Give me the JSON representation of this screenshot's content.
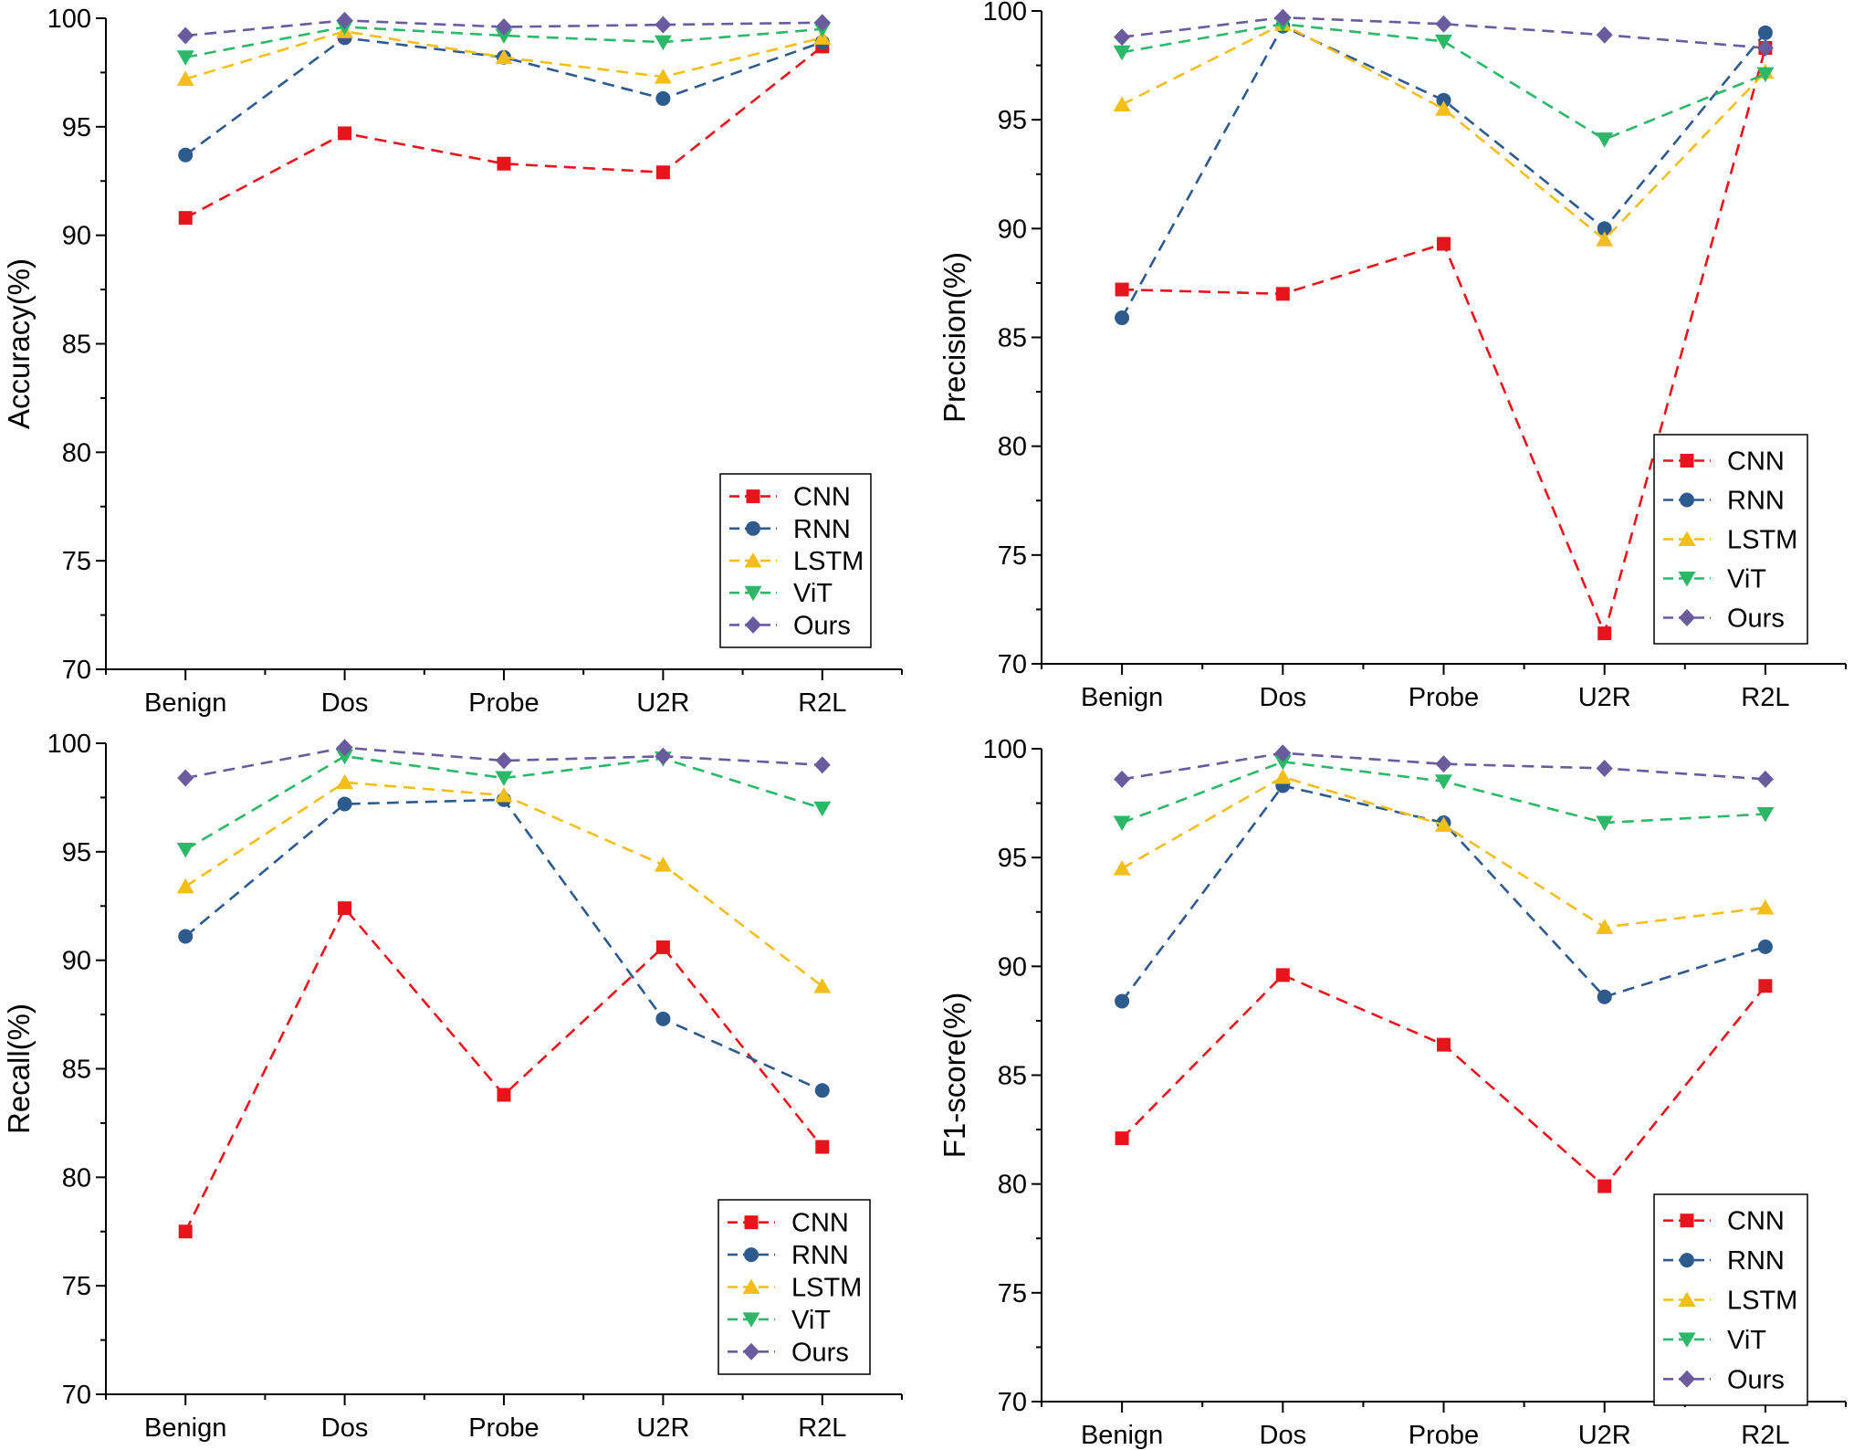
{
  "chart_data": [
    {
      "type": "line",
      "ylabel": "Accuracy(%)",
      "xlabel": "",
      "categories": [
        "Benign",
        "Dos",
        "Probe",
        "U2R",
        "R2L"
      ],
      "ylim": [
        70,
        100
      ],
      "yticks": [
        70,
        75,
        80,
        85,
        90,
        95,
        100
      ],
      "legend_position": "bottom-right",
      "series": [
        {
          "name": "CNN",
          "values": [
            90.8,
            94.7,
            93.3,
            92.9,
            98.7
          ]
        },
        {
          "name": "RNN",
          "values": [
            93.7,
            99.1,
            98.2,
            96.3,
            98.9
          ]
        },
        {
          "name": "LSTM",
          "values": [
            97.2,
            99.4,
            98.2,
            97.3,
            99.1
          ]
        },
        {
          "name": "ViT",
          "values": [
            98.2,
            99.6,
            99.2,
            98.9,
            99.5
          ]
        },
        {
          "name": "Ours",
          "values": [
            99.2,
            99.9,
            99.6,
            99.7,
            99.8
          ]
        }
      ]
    },
    {
      "type": "line",
      "ylabel": "Precision(%)",
      "xlabel": "",
      "categories": [
        "Benign",
        "Dos",
        "Probe",
        "U2R",
        "R2L"
      ],
      "ylim": [
        70,
        100
      ],
      "yticks": [
        70,
        75,
        80,
        85,
        90,
        95,
        100
      ],
      "legend_position": "bottom-right",
      "series": [
        {
          "name": "CNN",
          "values": [
            87.2,
            87.0,
            89.3,
            71.4,
            98.3
          ]
        },
        {
          "name": "RNN",
          "values": [
            85.9,
            99.3,
            95.9,
            90.0,
            99.0
          ]
        },
        {
          "name": "LSTM",
          "values": [
            95.7,
            99.4,
            95.5,
            89.5,
            97.2
          ]
        },
        {
          "name": "ViT",
          "values": [
            98.1,
            99.4,
            98.6,
            94.1,
            97.1
          ]
        },
        {
          "name": "Ours",
          "values": [
            98.8,
            99.7,
            99.4,
            98.9,
            98.3
          ]
        }
      ]
    },
    {
      "type": "line",
      "ylabel": "Recall(%)",
      "xlabel": "",
      "categories": [
        "Benign",
        "Dos",
        "Probe",
        "U2R",
        "R2L"
      ],
      "ylim": [
        70,
        100
      ],
      "yticks": [
        70,
        75,
        80,
        85,
        90,
        95,
        100
      ],
      "legend_position": "bottom-right",
      "series": [
        {
          "name": "CNN",
          "values": [
            77.5,
            92.4,
            83.8,
            90.6,
            81.4
          ]
        },
        {
          "name": "RNN",
          "values": [
            91.1,
            97.2,
            97.4,
            87.3,
            84.0
          ]
        },
        {
          "name": "LSTM",
          "values": [
            93.4,
            98.2,
            97.6,
            94.4,
            88.8
          ]
        },
        {
          "name": "ViT",
          "values": [
            95.1,
            99.4,
            98.4,
            99.3,
            97.0
          ]
        },
        {
          "name": "Ours",
          "values": [
            98.4,
            99.8,
            99.2,
            99.4,
            99.0
          ]
        }
      ]
    },
    {
      "type": "line",
      "ylabel": "F1-score(%)",
      "xlabel": "",
      "categories": [
        "Benign",
        "Dos",
        "Probe",
        "U2R",
        "R2L"
      ],
      "ylim": [
        70,
        100
      ],
      "yticks": [
        70,
        75,
        80,
        85,
        90,
        95,
        100
      ],
      "legend_position": "bottom-right",
      "series": [
        {
          "name": "CNN",
          "values": [
            82.1,
            89.6,
            86.4,
            79.9,
            89.1
          ]
        },
        {
          "name": "RNN",
          "values": [
            88.4,
            98.3,
            96.6,
            88.6,
            90.9
          ]
        },
        {
          "name": "LSTM",
          "values": [
            94.5,
            98.7,
            96.5,
            91.8,
            92.7
          ]
        },
        {
          "name": "ViT",
          "values": [
            96.6,
            99.4,
            98.5,
            96.6,
            97.0
          ]
        },
        {
          "name": "Ours",
          "values": [
            98.6,
            99.8,
            99.3,
            99.1,
            98.6
          ]
        }
      ]
    }
  ],
  "series_style": {
    "CNN": {
      "color": "#e8141c",
      "marker": "square-icon"
    },
    "RNN": {
      "color": "#2e5b8e",
      "marker": "circle-icon"
    },
    "LSTM": {
      "color": "#f4be1a",
      "marker": "triangle-up-icon"
    },
    "ViT": {
      "color": "#2bb868",
      "marker": "triangle-down-icon"
    },
    "Ours": {
      "color": "#6a5a9e",
      "marker": "diamond-icon"
    }
  }
}
